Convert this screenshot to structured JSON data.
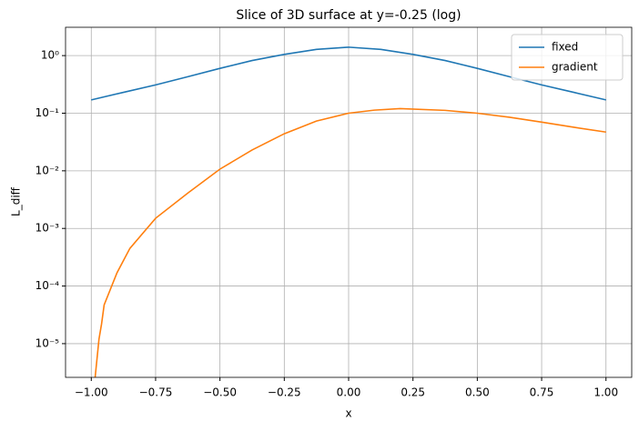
{
  "chart_data": {
    "type": "line",
    "title": "Slice of 3D surface at y=-0.25 (log)",
    "xlabel": "x",
    "ylabel": "L_diff",
    "yscale": "log",
    "grid": true,
    "legend": "upper right",
    "xlim": [
      -1.1,
      1.1
    ],
    "ylim": [
      2.6e-06,
      3.1
    ],
    "xticks": [
      {
        "value": -1,
        "label": "−1.00"
      },
      {
        "value": -0.75,
        "label": "−0.75"
      },
      {
        "value": -0.5,
        "label": "−0.50"
      },
      {
        "value": -0.25,
        "label": "−0.25"
      },
      {
        "value": 0,
        "label": "0.00"
      },
      {
        "value": 0.25,
        "label": "0.25"
      },
      {
        "value": 0.5,
        "label": "0.50"
      },
      {
        "value": 0.75,
        "label": "0.75"
      },
      {
        "value": 1,
        "label": "1.00"
      }
    ],
    "yticks": [
      {
        "value": 1e-05,
        "label": "10⁻⁵"
      },
      {
        "value": 0.0001,
        "label": "10⁻⁴"
      },
      {
        "value": 0.001,
        "label": "10⁻³"
      },
      {
        "value": 0.01,
        "label": "10⁻²"
      },
      {
        "value": 0.1,
        "label": "10⁻¹"
      },
      {
        "value": 1,
        "label": "10⁰"
      }
    ],
    "series": [
      {
        "name": "fixed",
        "color": "#1f77b4",
        "x": [
          -1,
          -0.875,
          -0.75,
          -0.625,
          -0.5,
          -0.375,
          -0.25,
          -0.125,
          0,
          0.125,
          0.25,
          0.375,
          0.5,
          0.625,
          0.75,
          0.875,
          1
        ],
        "values": [
          0.17,
          0.23,
          0.31,
          0.43,
          0.6,
          0.82,
          1.05,
          1.28,
          1.4,
          1.28,
          1.05,
          0.82,
          0.6,
          0.43,
          0.31,
          0.23,
          0.17
        ]
      },
      {
        "name": "gradient",
        "color": "#ff7f0e",
        "x": [
          -0.985,
          -0.97,
          -0.96,
          -0.95,
          -0.9,
          -0.85,
          -0.75,
          -0.625,
          -0.5,
          -0.375,
          -0.25,
          -0.125,
          0,
          0.1,
          0.2,
          0.375,
          0.5,
          0.625,
          0.75,
          0.875,
          1
        ],
        "values": [
          2.6e-06,
          1.2e-05,
          2.2e-05,
          4.7e-05,
          0.00017,
          0.00045,
          0.0015,
          0.0041,
          0.0107,
          0.023,
          0.044,
          0.073,
          0.1,
          0.113,
          0.12,
          0.112,
          0.1,
          0.085,
          0.07,
          0.057,
          0.047
        ]
      }
    ]
  }
}
